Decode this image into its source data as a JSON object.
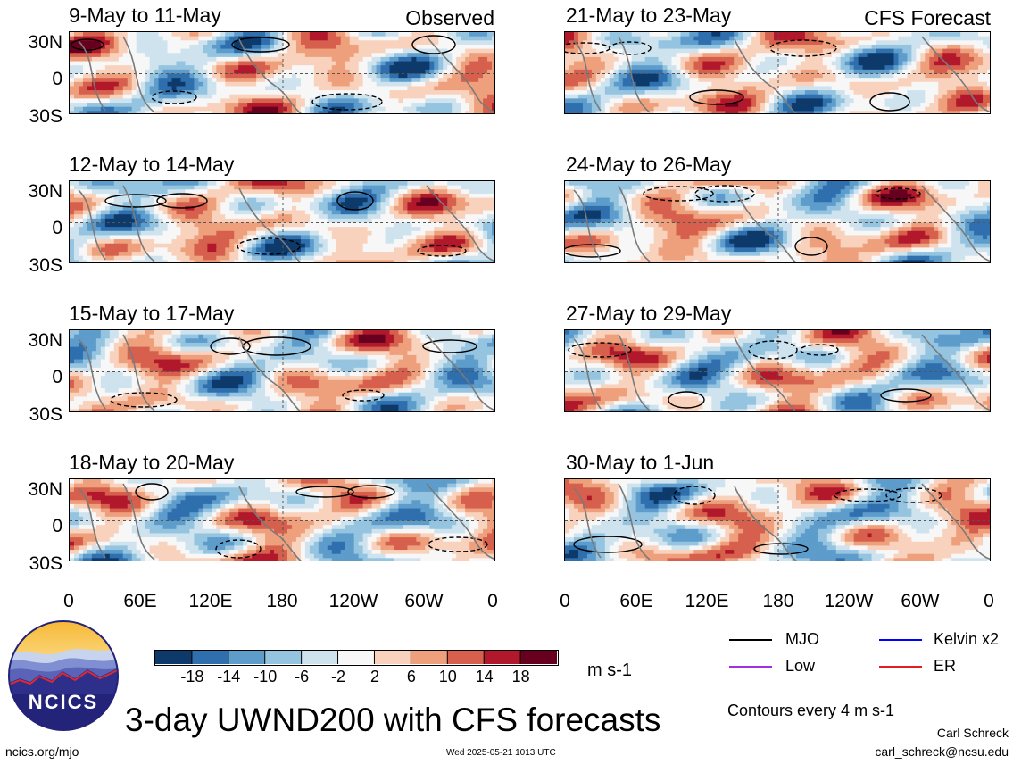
{
  "panels": [
    {
      "title": "9-May to 11-May",
      "tag": "Observed"
    },
    {
      "title": "21-May to 23-May",
      "tag": "CFS Forecast"
    },
    {
      "title": "12-May to 14-May",
      "tag": ""
    },
    {
      "title": "24-May to 26-May",
      "tag": ""
    },
    {
      "title": "15-May to 17-May",
      "tag": ""
    },
    {
      "title": "27-May to 29-May",
      "tag": ""
    },
    {
      "title": "18-May to 20-May",
      "tag": ""
    },
    {
      "title": "30-May to 1-Jun",
      "tag": ""
    }
  ],
  "chart_data": {
    "type": "heatmap",
    "title": "3-day UWND200 with CFS forecasts",
    "lat_ticks": [
      "30N",
      "0",
      "30S"
    ],
    "lon_ticks": [
      "0",
      "60E",
      "120E",
      "180",
      "120W",
      "60W",
      "0"
    ],
    "colorbar": {
      "unit": "m s-1",
      "tick_labels": [
        "-18",
        "-14",
        "-10",
        "-6",
        "-2",
        "2",
        "6",
        "10",
        "14",
        "18"
      ],
      "colors": [
        "#0d3a6b",
        "#2f6fae",
        "#5d9ccb",
        "#94c4e0",
        "#cfe3ef",
        "#f7f7f7",
        "#f9d2bd",
        "#eea07d",
        "#d6604d",
        "#b2182b",
        "#67001f"
      ]
    },
    "legend": [
      {
        "label": "MJO",
        "color": "#000000"
      },
      {
        "label": "Kelvin x2",
        "color": "#0000ff"
      },
      {
        "label": "Low",
        "color": "#a030e0"
      },
      {
        "label": "ER",
        "color": "#e02020"
      }
    ],
    "contour_note": "Contours every 4 m s-1"
  },
  "logo_text": "NCICS",
  "footer": {
    "left": "ncics.org/mjo",
    "center": "Wed 2025-05-21 1013 UTC",
    "author": "Carl Schreck",
    "email": "carl_schreck@ncsu.edu"
  }
}
